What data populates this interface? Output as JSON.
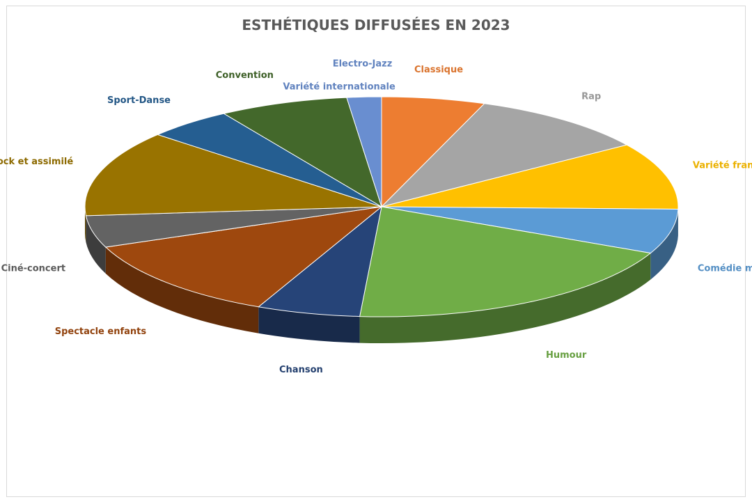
{
  "chart_data": {
    "type": "pie",
    "style": "3d",
    "title": "ESTHÉTIQUES DIFFUSÉES EN 2023",
    "slices": [
      {
        "label": "Classique",
        "value": 6.0,
        "color": "#ed7d31"
      },
      {
        "label": "Rap",
        "value": 10.5,
        "color": "#a5a5a5"
      },
      {
        "label": "Variété française",
        "value": 10.5,
        "color": "#ffc000"
      },
      {
        "label": "Comédie musicale",
        "value": 7.0,
        "color": "#5b9bd5"
      },
      {
        "label": "Humour",
        "value": 20.5,
        "color": "#70ad47"
      },
      {
        "label": "Chanson",
        "value": 6.0,
        "color": "#264478"
      },
      {
        "label": "Spectacle enfants",
        "value": 13.0,
        "color": "#9e480e"
      },
      {
        "label": "Ciné-concert",
        "value": 5.0,
        "color": "#636363"
      },
      {
        "label": "Pop rock et assimilé",
        "value": 13.5,
        "color": "#997300"
      },
      {
        "label": "Sport-Danse",
        "value": 5.0,
        "color": "#255e91"
      },
      {
        "label": "Convention",
        "value": 7.5,
        "color": "#43682b"
      },
      {
        "label": "Variété internationale",
        "value": 0.0,
        "color": "#698ed0"
      },
      {
        "label": "Electro-Jazz",
        "value": 2.0,
        "color": "#698ed0"
      }
    ]
  }
}
